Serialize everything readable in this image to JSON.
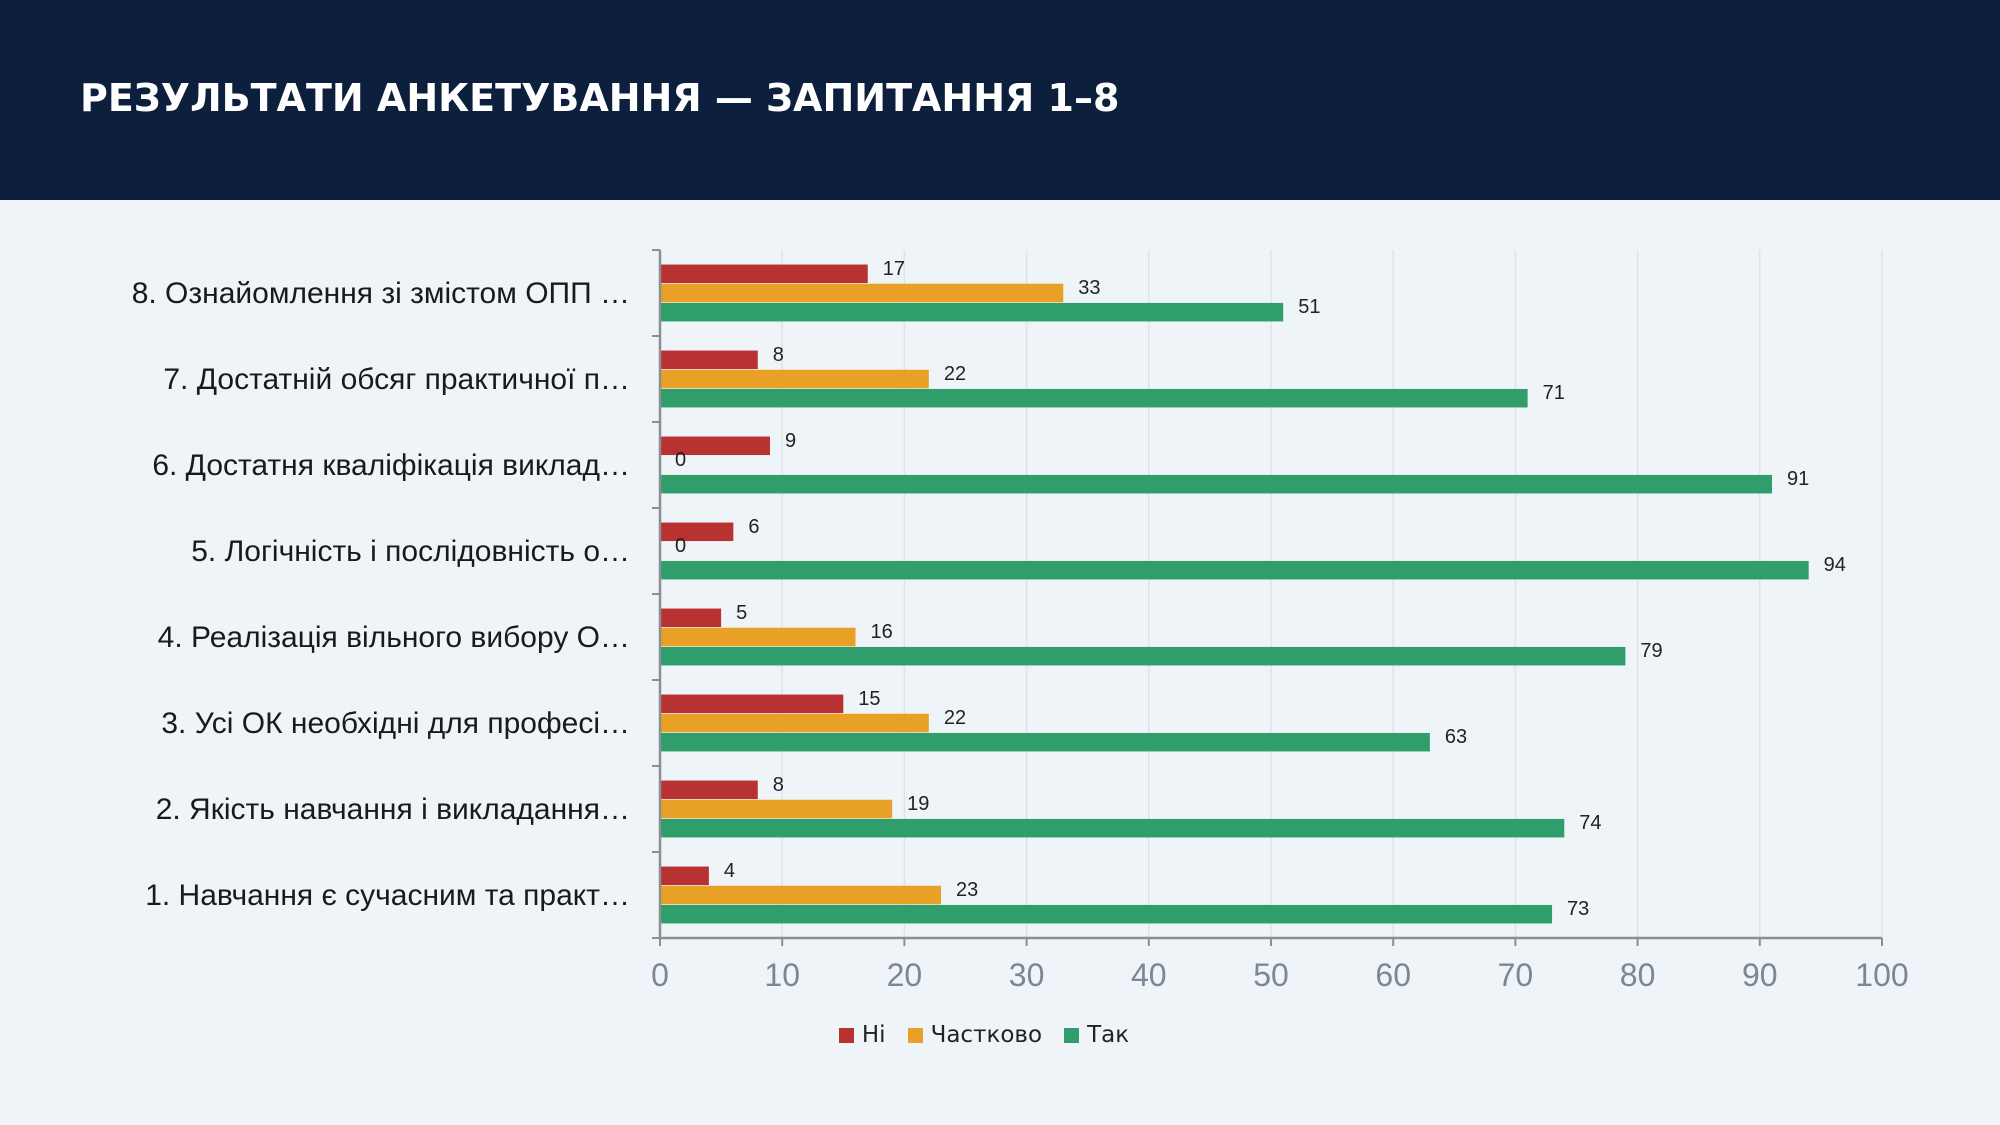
{
  "header": {
    "title": "РЕЗУЛЬТАТИ АНКЕТУВАННЯ — ЗАПИТАННЯ 1–8"
  },
  "chart_data": {
    "type": "bar",
    "orientation": "horizontal",
    "categories": [
      "8. Ознайомлення зі змістом ОПП …",
      "7. Достатній обсяг практичної п…",
      "6. Достатня кваліфікація виклад…",
      "5. Логічність і послідовність о…",
      "4. Реалізація вільного вибору О…",
      "3. Усі ОК необхідні для професі…",
      "2. Якість навчання і викладання…",
      "1. Навчання є сучасним та практ…"
    ],
    "series": [
      {
        "name": "Ні",
        "color": "#b83232",
        "values": [
          17,
          8,
          9,
          6,
          5,
          15,
          8,
          4
        ]
      },
      {
        "name": "Частково",
        "color": "#e8a027",
        "values": [
          33,
          22,
          0,
          0,
          16,
          22,
          19,
          23
        ]
      },
      {
        "name": "Так",
        "color": "#2f9e6a",
        "values": [
          51,
          71,
          91,
          94,
          79,
          63,
          74,
          73
        ]
      }
    ],
    "xlim": [
      0,
      100
    ],
    "xticks": [
      0,
      10,
      20,
      30,
      40,
      50,
      60,
      70,
      80,
      90,
      100
    ],
    "grid": true,
    "legend_position": "bottom"
  }
}
